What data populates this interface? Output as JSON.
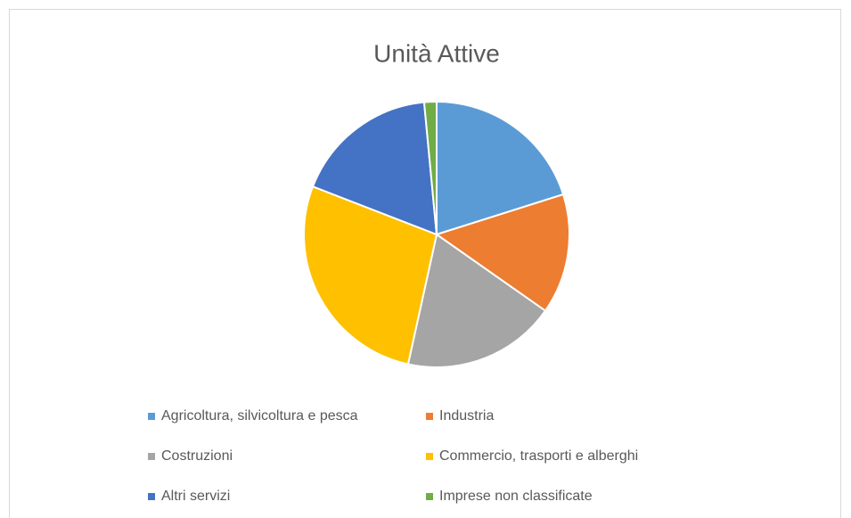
{
  "chart_data": {
    "type": "pie",
    "title": "Unità Attive",
    "categories": [
      "Agricoltura, silvicoltura e pesca",
      "Industria",
      "Costruzioni",
      "Commercio, trasporti e alberghi",
      "Altri servizi",
      "Imprese non classificate"
    ],
    "values": [
      20.1,
      14.6,
      18.7,
      27.4,
      17.6,
      1.5
    ],
    "colors": [
      "#5b9bd5",
      "#ed7d31",
      "#a5a5a5",
      "#ffc000",
      "#4472c4",
      "#70ad47"
    ],
    "legend": "bottom"
  }
}
